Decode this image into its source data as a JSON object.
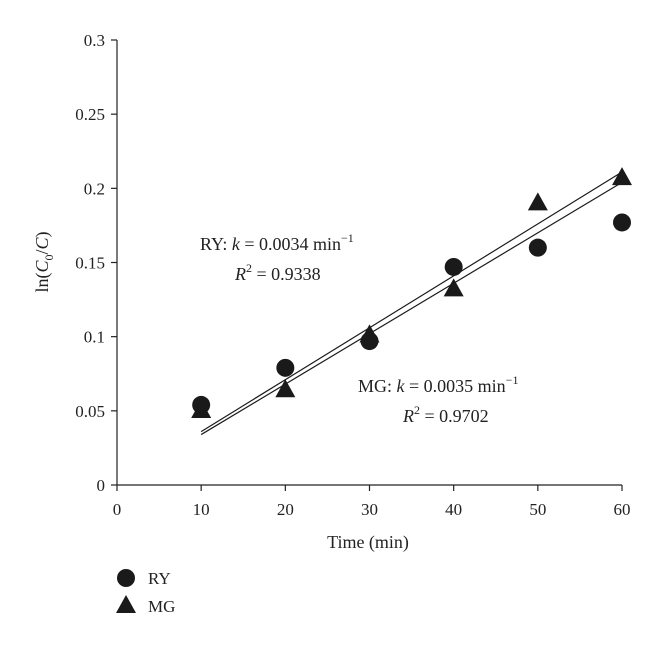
{
  "chart_data": {
    "type": "scatter",
    "xlabel": "Time (min)",
    "ylabel": "ln(C0/C)",
    "xlim": [
      0,
      60
    ],
    "ylim": [
      0,
      0.3
    ],
    "xticks": [
      "0",
      "10",
      "20",
      "30",
      "40",
      "50",
      "60"
    ],
    "yticks": [
      "0",
      "0.05",
      "0.1",
      "0.15",
      "0.2",
      "0.25",
      "0.3"
    ],
    "grid": false,
    "legend_position": "bottom-left",
    "series": [
      {
        "name": "RY",
        "marker": "circle",
        "x": [
          10,
          20,
          30,
          40,
          50,
          60
        ],
        "y": [
          0.054,
          0.079,
          0.097,
          0.147,
          0.16,
          0.177
        ],
        "fit": {
          "k": 0.0034,
          "intercept": 0.0,
          "r2": 0.9338
        }
      },
      {
        "name": "MG",
        "marker": "triangle",
        "x": [
          10,
          20,
          30,
          40,
          50,
          60
        ],
        "y": [
          0.05,
          0.064,
          0.101,
          0.132,
          0.19,
          0.207
        ],
        "fit": {
          "k": 0.0035,
          "intercept": 0.0,
          "r2": 0.9702
        }
      }
    ],
    "fit_lines": [
      {
        "x": [
          10,
          60
        ],
        "y": [
          0.036,
          0.211
        ]
      },
      {
        "x": [
          10,
          60
        ],
        "y": [
          0.034,
          0.204
        ]
      }
    ],
    "annotations": [
      {
        "series": "RY",
        "line1": "RY: k = 0.0034 min⁻¹",
        "line2": "R² = 0.9338"
      },
      {
        "series": "MG",
        "line1": "MG: k = 0.0035 min⁻¹",
        "line2": "R² = 0.9702"
      }
    ]
  }
}
